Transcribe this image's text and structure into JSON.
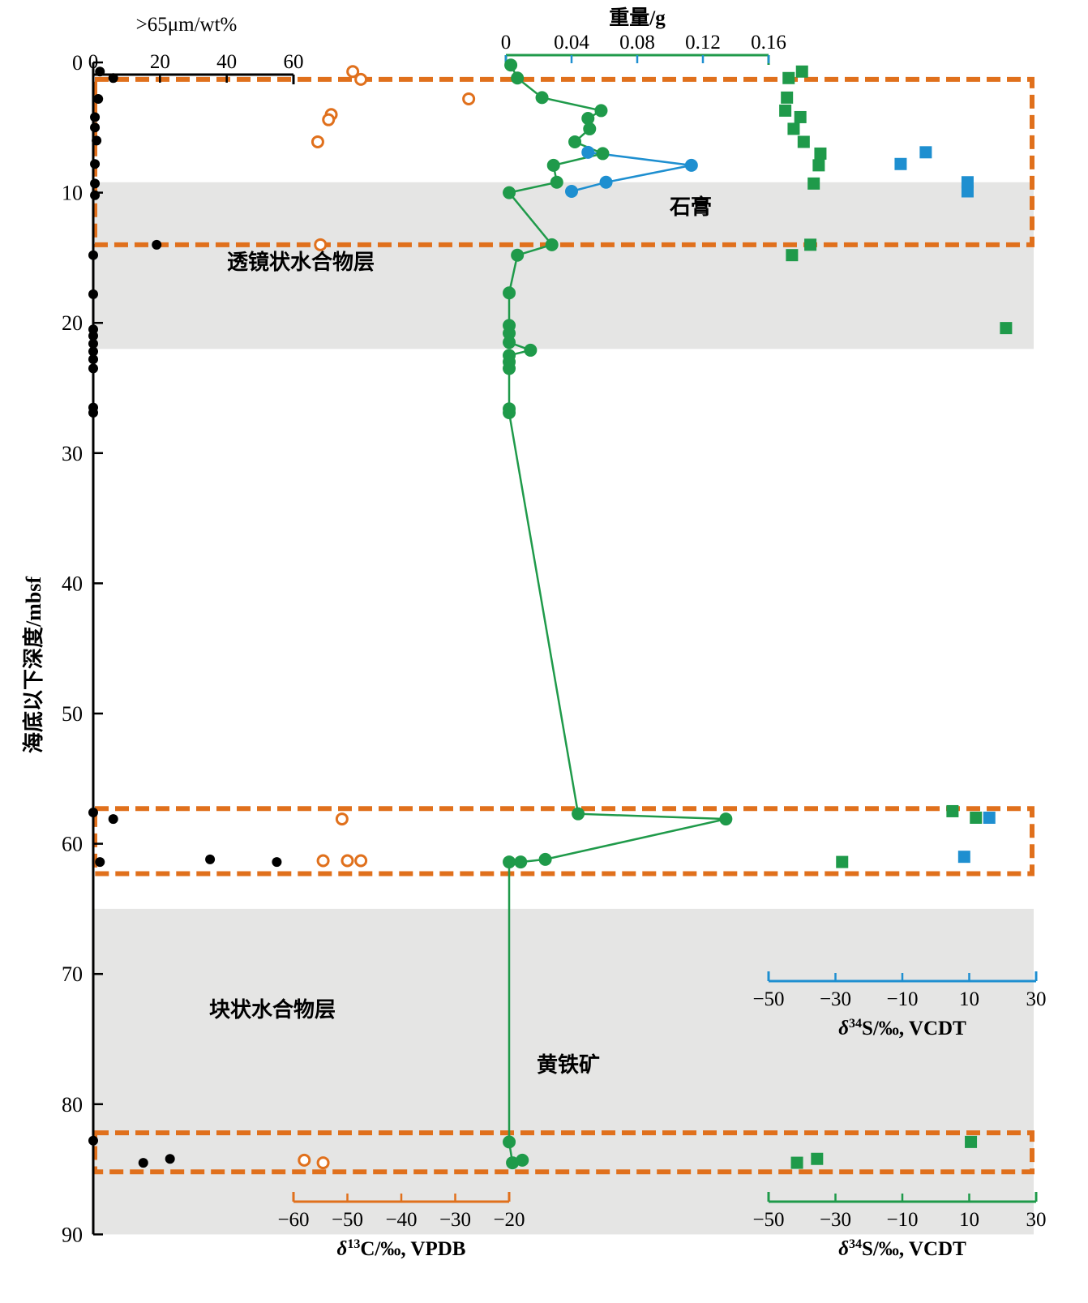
{
  "chart_data": {
    "type": "scatter",
    "title": "",
    "depth_axis": {
      "label": "海底以下深度/mbsf",
      "ylim": [
        0,
        90
      ],
      "ticks": [
        0,
        10,
        20,
        30,
        40,
        50,
        60,
        70,
        80,
        90
      ],
      "inverted": true
    },
    "axes": {
      "coarse": {
        "label": ">65μm/wt%",
        "range": [
          0,
          60
        ],
        "ticks": [
          0,
          20,
          40,
          60
        ],
        "color": "#000000",
        "position": "top"
      },
      "weight": {
        "label": "重量/g",
        "range": [
          0,
          0.16
        ],
        "ticks": [
          0,
          0.04,
          0.08,
          0.12,
          0.16
        ],
        "tick_labels": [
          "0",
          "0.04",
          "0.08",
          "0.12",
          "0.16"
        ],
        "color": "#1f9a4a",
        "position": "top"
      },
      "d13c": {
        "label": "δ13C/‰, VPDB",
        "label_parts": [
          "δ",
          "13",
          "C/‰, VPDB"
        ],
        "range": [
          -60,
          -20
        ],
        "ticks": [
          -60,
          -50,
          -40,
          -30,
          -20
        ],
        "tick_labels": [
          "−60",
          "−50",
          "−40",
          "−30",
          "−20"
        ],
        "color": "#e0701c",
        "position": "bottom"
      },
      "d34s_green": {
        "label": "δ34S/‰, VCDT",
        "label_parts": [
          "δ",
          "34",
          "S/‰, VCDT"
        ],
        "range": [
          -50,
          30
        ],
        "ticks": [
          -50,
          -30,
          -10,
          10,
          30
        ],
        "tick_labels": [
          "−50",
          "−30",
          "−10",
          "10",
          "30"
        ],
        "color": "#1f9a4a",
        "position": "bottom"
      },
      "d34s_blue": {
        "label": "δ34S/‰, VCDT",
        "label_parts": [
          "δ",
          "34",
          "S/‰, VCDT"
        ],
        "range": [
          -50,
          30
        ],
        "ticks": [
          -50,
          -30,
          -10,
          10,
          30
        ],
        "tick_labels": [
          "−50",
          "−30",
          "−10",
          "10",
          "30"
        ],
        "color": "#1e8fd0",
        "position": "inset"
      }
    },
    "colors": {
      "orange": "#e0701c",
      "green": "#1f9a4a",
      "blue": "#1e8fd0",
      "black": "#000000",
      "shade": "#e5e5e4"
    },
    "shaded_layers": [
      {
        "name": "透镜状水合物层",
        "from": 9.2,
        "to": 22
      },
      {
        "name": "块状水合物层",
        "from": 65,
        "to": 90
      }
    ],
    "highlight_boxes": [
      {
        "from": 1.3,
        "to": 14
      },
      {
        "from": 57.3,
        "to": 62.3
      },
      {
        "from": 82.2,
        "to": 85.2
      }
    ],
    "annotations": [
      {
        "text": "石膏"
      },
      {
        "text": "透镜状水合物层"
      },
      {
        "text": "块状水合物层"
      },
      {
        "text": "黄铁矿"
      }
    ],
    "series": [
      {
        "name": ">65μm/wt%",
        "axis": "coarse",
        "marker": "filled-circle",
        "color": "#000000",
        "points": [
          {
            "depth": 0.7,
            "value": 2
          },
          {
            "depth": 1.2,
            "value": 6
          },
          {
            "depth": 2.8,
            "value": 1.5
          },
          {
            "depth": 4.2,
            "value": 0.5
          },
          {
            "depth": 5.0,
            "value": 0.5
          },
          {
            "depth": 6.0,
            "value": 1
          },
          {
            "depth": 7.8,
            "value": 0.5
          },
          {
            "depth": 9.3,
            "value": 0.5
          },
          {
            "depth": 10.2,
            "value": 0.5
          },
          {
            "depth": 14.0,
            "value": 19
          },
          {
            "depth": 14.8,
            "value": 0
          },
          {
            "depth": 17.8,
            "value": 0
          },
          {
            "depth": 20.5,
            "value": 0
          },
          {
            "depth": 21.0,
            "value": 0
          },
          {
            "depth": 21.6,
            "value": 0
          },
          {
            "depth": 22.2,
            "value": 0
          },
          {
            "depth": 22.8,
            "value": 0
          },
          {
            "depth": 23.5,
            "value": 0
          },
          {
            "depth": 26.5,
            "value": 0
          },
          {
            "depth": 26.9,
            "value": 0
          },
          {
            "depth": 57.6,
            "value": 0
          },
          {
            "depth": 58.1,
            "value": 6
          },
          {
            "depth": 61.2,
            "value": 35
          },
          {
            "depth": 61.4,
            "value": 55
          },
          {
            "depth": 61.4,
            "value": 2
          },
          {
            "depth": 82.8,
            "value": 0
          },
          {
            "depth": 84.2,
            "value": 23
          },
          {
            "depth": 84.5,
            "value": 15
          }
        ]
      },
      {
        "name": "δ13C/‰, VPDB",
        "axis": "d13c",
        "marker": "open-circle",
        "color": "#e0701c",
        "points": [
          {
            "depth": 0.7,
            "value": -49
          },
          {
            "depth": 1.3,
            "value": -47.5
          },
          {
            "depth": 2.8,
            "value": -27.5
          },
          {
            "depth": 4.0,
            "value": -53
          },
          {
            "depth": 4.4,
            "value": -53.5
          },
          {
            "depth": 6.1,
            "value": -55.5
          },
          {
            "depth": 14.0,
            "value": -55
          },
          {
            "depth": 58.1,
            "value": -51
          },
          {
            "depth": 61.3,
            "value": -54.5
          },
          {
            "depth": 61.3,
            "value": -50
          },
          {
            "depth": 61.3,
            "value": -47.5
          },
          {
            "depth": 84.3,
            "value": -58
          },
          {
            "depth": 84.5,
            "value": -54.5
          }
        ]
      },
      {
        "name": "重量/g",
        "axis": "weight",
        "marker": "filled-circle",
        "line": true,
        "color": "#1f9a4a",
        "points": [
          {
            "depth": 0.2,
            "value": 0.003
          },
          {
            "depth": 1.2,
            "value": 0.007
          },
          {
            "depth": 2.7,
            "value": 0.022
          },
          {
            "depth": 3.7,
            "value": 0.058
          },
          {
            "depth": 4.3,
            "value": 0.05
          },
          {
            "depth": 5.1,
            "value": 0.051
          },
          {
            "depth": 6.1,
            "value": 0.042
          },
          {
            "depth": 7.0,
            "value": 0.059
          },
          {
            "depth": 7.9,
            "value": 0.029
          },
          {
            "depth": 9.2,
            "value": 0.031
          },
          {
            "depth": 10.0,
            "value": 0.002
          },
          {
            "depth": 14.0,
            "value": 0.028
          },
          {
            "depth": 14.8,
            "value": 0.007
          },
          {
            "depth": 17.7,
            "value": 0.002
          },
          {
            "depth": 20.2,
            "value": 0.002
          },
          {
            "depth": 20.8,
            "value": 0.002
          },
          {
            "depth": 21.5,
            "value": 0.002
          },
          {
            "depth": 22.1,
            "value": 0.015
          },
          {
            "depth": 22.5,
            "value": 0.002
          },
          {
            "depth": 23.0,
            "value": 0.002
          },
          {
            "depth": 23.5,
            "value": 0.002
          },
          {
            "depth": 26.6,
            "value": 0.002
          },
          {
            "depth": 26.9,
            "value": 0.002
          },
          {
            "depth": 57.7,
            "value": 0.044
          },
          {
            "depth": 58.1,
            "value": 0.134
          },
          {
            "depth": 61.2,
            "value": 0.024
          },
          {
            "depth": 61.4,
            "value": 0.009
          },
          {
            "depth": 61.4,
            "value": 0.002
          },
          {
            "depth": 82.9,
            "value": 0.002
          },
          {
            "depth": 84.5,
            "value": 0.004
          },
          {
            "depth": 84.3,
            "value": 0.01
          }
        ]
      },
      {
        "name": "重量/g",
        "axis": "weight",
        "marker": "filled-circle",
        "line": true,
        "color": "#1e8fd0",
        "points": [
          {
            "depth": 6.9,
            "value": 0.05
          },
          {
            "depth": 7.9,
            "value": 0.113
          },
          {
            "depth": 9.2,
            "value": 0.061
          },
          {
            "depth": 9.9,
            "value": 0.04
          }
        ]
      },
      {
        "name": "δ34S/‰, VCDT",
        "axis": "d34s_green",
        "marker": "filled-square",
        "color": "#1f9a4a",
        "points": [
          {
            "depth": 0.7,
            "value": -40
          },
          {
            "depth": 1.2,
            "value": -44
          },
          {
            "depth": 2.7,
            "value": -44.5
          },
          {
            "depth": 3.7,
            "value": -45
          },
          {
            "depth": 4.2,
            "value": -40.5
          },
          {
            "depth": 5.1,
            "value": -42.5
          },
          {
            "depth": 6.1,
            "value": -39.5
          },
          {
            "depth": 7.0,
            "value": -34.5
          },
          {
            "depth": 7.9,
            "value": -35
          },
          {
            "depth": 9.3,
            "value": -36.5
          },
          {
            "depth": 14.0,
            "value": -37.5
          },
          {
            "depth": 14.8,
            "value": -43
          },
          {
            "depth": 20.4,
            "value": 21
          },
          {
            "depth": 57.5,
            "value": 5
          },
          {
            "depth": 58.0,
            "value": 12
          },
          {
            "depth": 61.4,
            "value": -28
          },
          {
            "depth": 82.9,
            "value": 10.5
          },
          {
            "depth": 84.2,
            "value": -35.5
          },
          {
            "depth": 84.5,
            "value": -41.5
          }
        ]
      },
      {
        "name": "δ34S/‰, VCDT",
        "axis": "d34s_blue",
        "marker": "filled-square",
        "color": "#1e8fd0",
        "points": [
          {
            "depth": 6.9,
            "value": -3
          },
          {
            "depth": 7.8,
            "value": -10.5
          },
          {
            "depth": 9.2,
            "value": 9.5
          },
          {
            "depth": 9.9,
            "value": 9.5
          },
          {
            "depth": 58.0,
            "value": 16
          },
          {
            "depth": 61.0,
            "value": 8.5
          }
        ]
      }
    ]
  }
}
